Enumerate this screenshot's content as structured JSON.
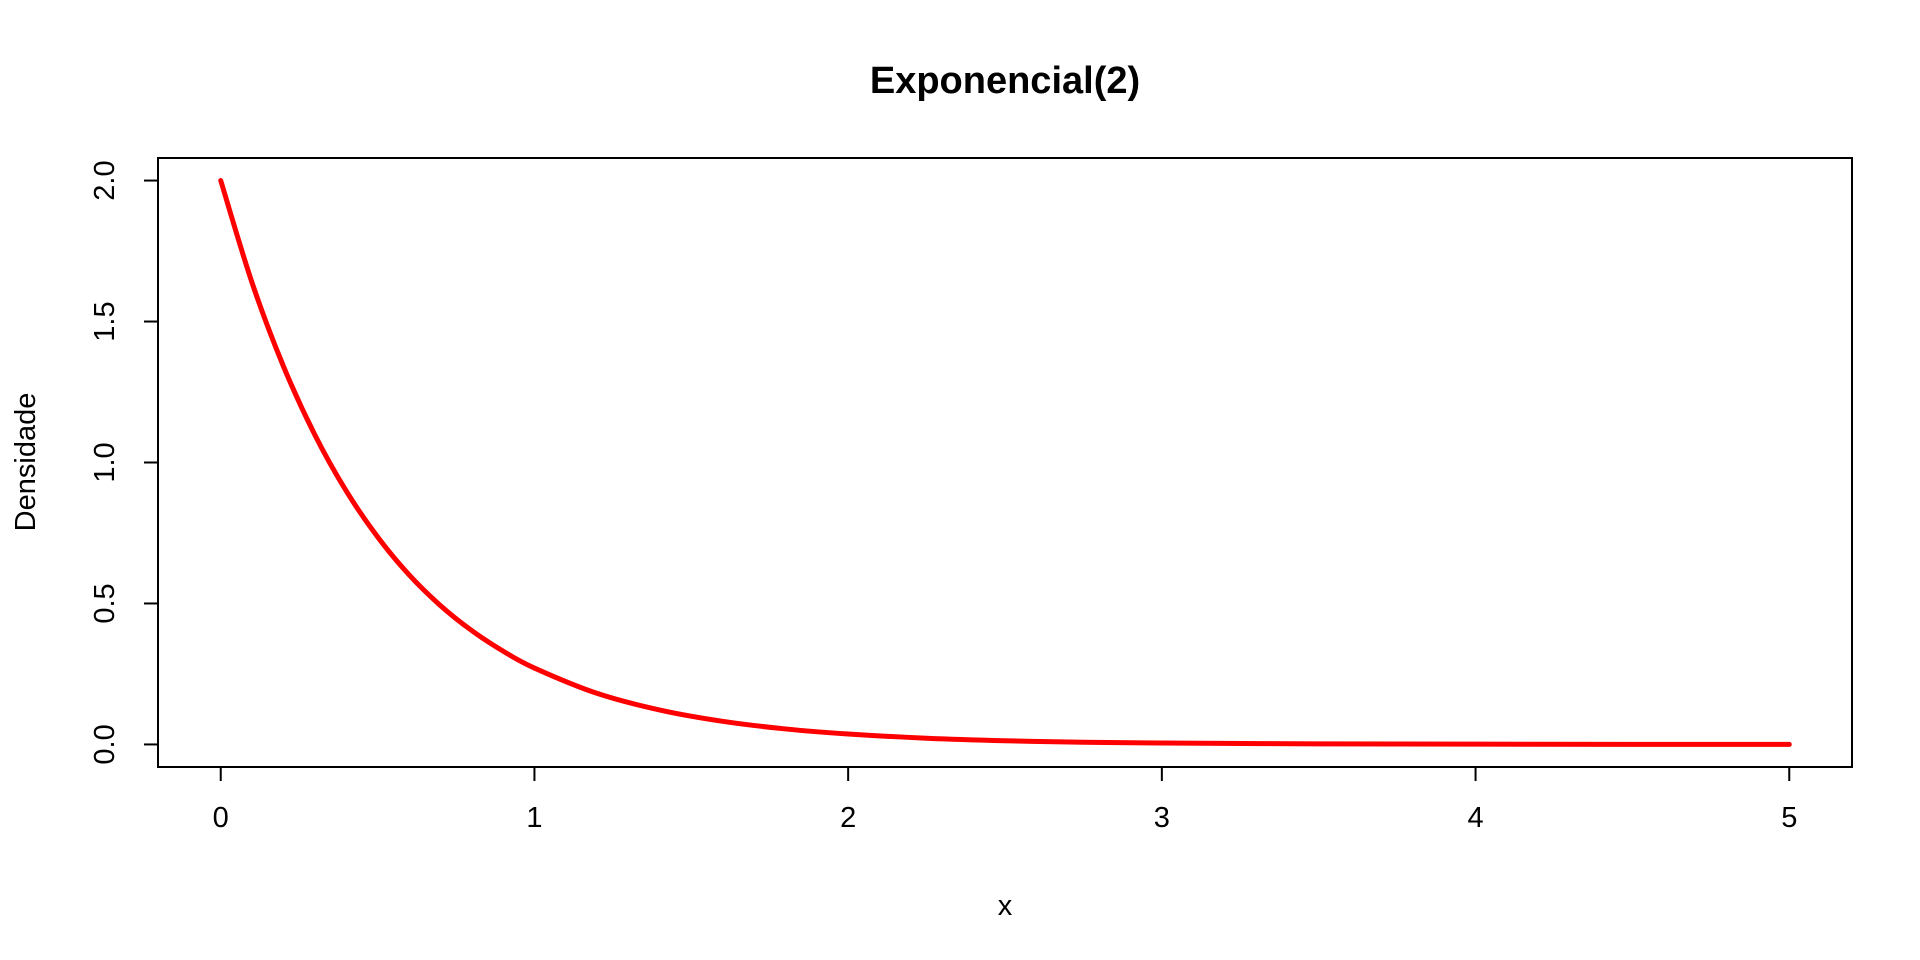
{
  "chart_data": {
    "type": "line",
    "title": "Exponencial(2)",
    "xlabel": "x",
    "ylabel": "Densidade",
    "xlim": [
      -0.2,
      5.2
    ],
    "ylim": [
      -0.08,
      2.08
    ],
    "x_ticks": [
      0,
      1,
      2,
      3,
      4,
      5
    ],
    "x_tick_labels": [
      "0",
      "1",
      "2",
      "3",
      "4",
      "5"
    ],
    "y_ticks": [
      0.0,
      0.5,
      1.0,
      1.5,
      2.0
    ],
    "y_tick_labels": [
      "0.0",
      "0.5",
      "1.0",
      "1.5",
      "2.0"
    ],
    "grid": false,
    "series": [
      {
        "color": "#ff0000",
        "x": [
          0,
          0.1,
          0.2,
          0.3,
          0.4,
          0.5,
          0.6,
          0.7,
          0.8,
          0.9,
          1.0,
          1.2,
          1.4,
          1.6,
          1.8,
          2.0,
          2.25,
          2.5,
          2.75,
          3.0,
          3.5,
          4.0,
          4.5,
          5.0
        ],
        "y": [
          2.0,
          1.637,
          1.341,
          1.098,
          0.899,
          0.736,
          0.602,
          0.493,
          0.404,
          0.331,
          0.271,
          0.181,
          0.122,
          0.082,
          0.055,
          0.037,
          0.022,
          0.013,
          0.008,
          0.005,
          0.002,
          0.001,
          0.0002,
          0.0001
        ]
      }
    ]
  }
}
